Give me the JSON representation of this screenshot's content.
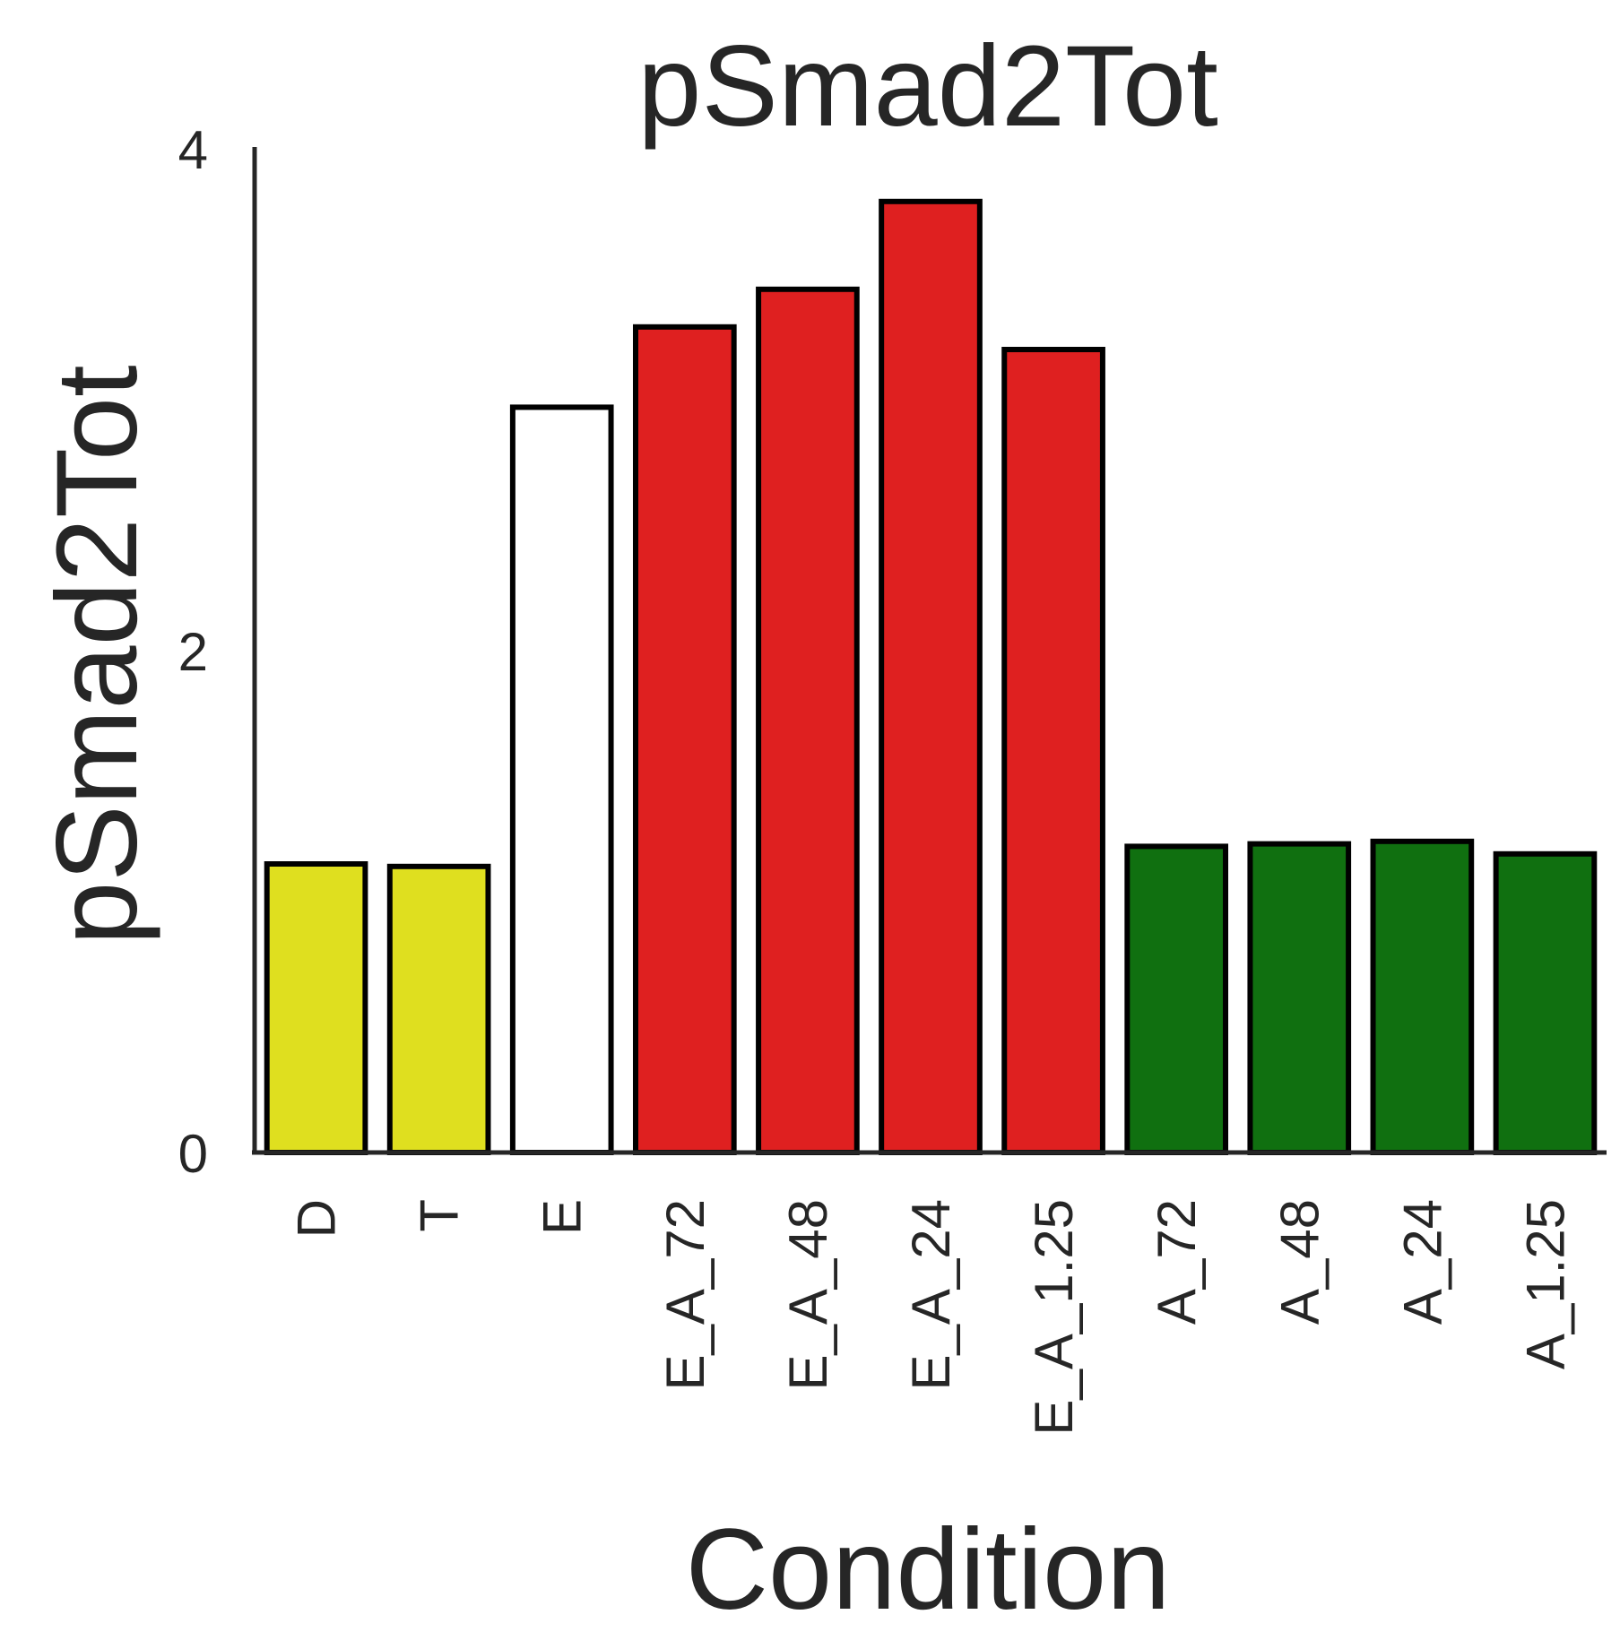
{
  "chart_data": {
    "type": "bar",
    "title": "pSmad2Tot",
    "xlabel": "Condition",
    "ylabel": "pSmad2Tot",
    "ylim": [
      0,
      4
    ],
    "yticks": [
      "0",
      "2",
      "4"
    ],
    "grid": false,
    "categories": [
      "D",
      "T",
      "E",
      "E_A_72",
      "E_A_48",
      "E_A_24",
      "E_A_1.25",
      "A_72",
      "A_48",
      "A_24",
      "A_1.25"
    ],
    "values": [
      1.15,
      1.14,
      2.97,
      3.29,
      3.44,
      3.79,
      3.2,
      1.22,
      1.23,
      1.24,
      1.19
    ],
    "colors": [
      "#dfdf1f",
      "#dfdf1f",
      "#ffffff",
      "#df2020",
      "#df2020",
      "#df2020",
      "#df2020",
      "#107010",
      "#107010",
      "#107010",
      "#107010"
    ],
    "edge_color": "#000000"
  }
}
